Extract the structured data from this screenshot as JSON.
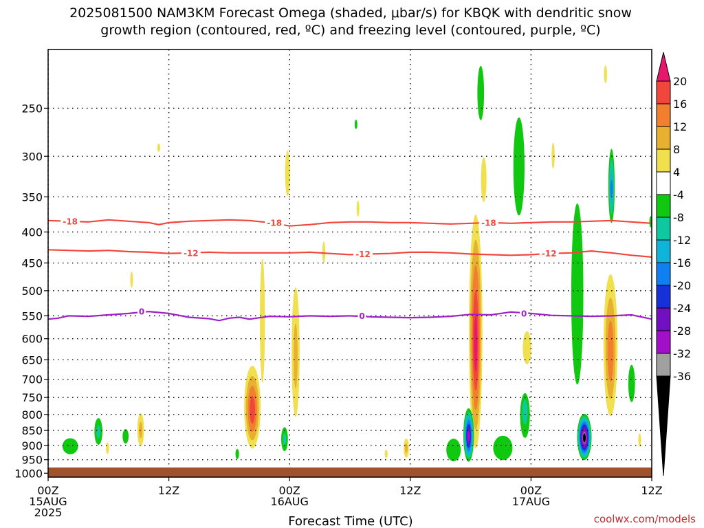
{
  "chart_data": {
    "type": "heatmap",
    "title_line1": "2025081500 NAM3KM Forecast Omega (shaded, μbar/s) for KBQK with dendritic snow",
    "title_line2": "growth region (contoured, red, ºC) and freezing level (contoured, purple, ºC)",
    "xlabel": "Forecast Time (UTC)",
    "credit": "coolwx.com/models",
    "x_range_hours": [
      0,
      60
    ],
    "y_axis": "pressure (hPa), log scale, inverted",
    "y_ticks": [
      250,
      300,
      350,
      400,
      450,
      500,
      550,
      600,
      650,
      700,
      750,
      800,
      850,
      900,
      950,
      1000
    ],
    "y_range": [
      200,
      1015
    ],
    "x_ticks": [
      {
        "hour": 0,
        "lines": [
          "00Z",
          "15AUG",
          "2025"
        ]
      },
      {
        "hour": 12,
        "lines": [
          "12Z"
        ]
      },
      {
        "hour": 24,
        "lines": [
          "00Z",
          "16AUG"
        ]
      },
      {
        "hour": 36,
        "lines": [
          "12Z"
        ]
      },
      {
        "hour": 48,
        "lines": [
          "00Z",
          "17AUG"
        ]
      },
      {
        "hour": 60,
        "lines": [
          "12Z"
        ]
      }
    ],
    "grid": "dotted",
    "colorbar": {
      "position": "right",
      "labels": [
        "20",
        "16",
        "12",
        "8",
        "4",
        "-4",
        "-8",
        "-12",
        "-16",
        "-20",
        "-24",
        "-28",
        "-32",
        "-36"
      ],
      "colors": [
        "#e8176c",
        "#f0463c",
        "#f08030",
        "#e8b030",
        "#f0e050",
        "#ffffff",
        "#10c810",
        "#10c8a0",
        "#10b4d8",
        "#1080f0",
        "#1830d8",
        "#7010c0",
        "#a010c8",
        "#a0a0a0",
        "#000000"
      ]
    },
    "contours": [
      {
        "name": "-18",
        "color": "#f0463c",
        "label": "-18",
        "points": [
          [
            0,
            383
          ],
          [
            2,
            384
          ],
          [
            4,
            385
          ],
          [
            6,
            382
          ],
          [
            8,
            384
          ],
          [
            10,
            386
          ],
          [
            11,
            389
          ],
          [
            12,
            386
          ],
          [
            14,
            384
          ],
          [
            16,
            383
          ],
          [
            18,
            382
          ],
          [
            20,
            383
          ],
          [
            22,
            386
          ],
          [
            24,
            391
          ],
          [
            26,
            389
          ],
          [
            28,
            386
          ],
          [
            30,
            385
          ],
          [
            32,
            385
          ],
          [
            34,
            386
          ],
          [
            36,
            386
          ],
          [
            38,
            387
          ],
          [
            40,
            388
          ],
          [
            42,
            387
          ],
          [
            44,
            386
          ],
          [
            46,
            387
          ],
          [
            48,
            386
          ],
          [
            50,
            385
          ],
          [
            52,
            385
          ],
          [
            54,
            384
          ],
          [
            56,
            383
          ],
          [
            58,
            385
          ],
          [
            60,
            387
          ]
        ]
      },
      {
        "name": "-12",
        "color": "#f0463c",
        "label": "-12",
        "points": [
          [
            0,
            428
          ],
          [
            2,
            429
          ],
          [
            4,
            430
          ],
          [
            6,
            429
          ],
          [
            8,
            431
          ],
          [
            10,
            432
          ],
          [
            12,
            434
          ],
          [
            14,
            433
          ],
          [
            16,
            432
          ],
          [
            18,
            433
          ],
          [
            20,
            433
          ],
          [
            22,
            433
          ],
          [
            24,
            433
          ],
          [
            26,
            432
          ],
          [
            28,
            434
          ],
          [
            30,
            436
          ],
          [
            32,
            435
          ],
          [
            34,
            434
          ],
          [
            36,
            432
          ],
          [
            38,
            432
          ],
          [
            40,
            433
          ],
          [
            42,
            435
          ],
          [
            44,
            436
          ],
          [
            46,
            437
          ],
          [
            48,
            436
          ],
          [
            50,
            434
          ],
          [
            52,
            433
          ],
          [
            54,
            430
          ],
          [
            56,
            433
          ],
          [
            58,
            437
          ],
          [
            60,
            440
          ]
        ]
      },
      {
        "name": "0",
        "color": "#a020c8",
        "label": "0",
        "points": [
          [
            0,
            557
          ],
          [
            1,
            555
          ],
          [
            2,
            550
          ],
          [
            4,
            551
          ],
          [
            6,
            548
          ],
          [
            8,
            545
          ],
          [
            10,
            541
          ],
          [
            12,
            545
          ],
          [
            14,
            553
          ],
          [
            16,
            556
          ],
          [
            17,
            560
          ],
          [
            18,
            555
          ],
          [
            19,
            553
          ],
          [
            20,
            557
          ],
          [
            22,
            551
          ],
          [
            24,
            552
          ],
          [
            26,
            550
          ],
          [
            28,
            551
          ],
          [
            30,
            550
          ],
          [
            32,
            552
          ],
          [
            34,
            553
          ],
          [
            36,
            554
          ],
          [
            38,
            553
          ],
          [
            40,
            551
          ],
          [
            42,
            547
          ],
          [
            44,
            548
          ],
          [
            46,
            542
          ],
          [
            48,
            545
          ],
          [
            50,
            549
          ],
          [
            52,
            550
          ],
          [
            54,
            551
          ],
          [
            56,
            550
          ],
          [
            58,
            548
          ],
          [
            60,
            557
          ]
        ]
      }
    ],
    "contour_labels": [
      {
        "text": "-18",
        "hour": 2.2,
        "p": 384,
        "color": "#f0463c"
      },
      {
        "text": "-18",
        "hour": 22.5,
        "p": 386,
        "color": "#f0463c"
      },
      {
        "text": "-18",
        "hour": 43.8,
        "p": 386,
        "color": "#f0463c"
      },
      {
        "text": "-12",
        "hour": 14.2,
        "p": 433,
        "color": "#f0463c"
      },
      {
        "text": "-12",
        "hour": 31.3,
        "p": 435,
        "color": "#f0463c"
      },
      {
        "text": "-12",
        "hour": 49.8,
        "p": 434,
        "color": "#f0463c"
      },
      {
        "text": "0",
        "hour": 9.3,
        "p": 541,
        "color": "#a020c8"
      },
      {
        "text": "0",
        "hour": 31.2,
        "p": 550,
        "color": "#a020c8"
      },
      {
        "text": "0",
        "hour": 47.3,
        "p": 545,
        "color": "#a020c8"
      }
    ],
    "omega_features": [
      {
        "hour": 2.2,
        "p": 895,
        "hw": 1.4,
        "p_lo": 860,
        "p_hi": 960,
        "value": -6
      },
      {
        "hour": 5.0,
        "p": 855,
        "hw": 0.6,
        "p_lo": 790,
        "p_hi": 920,
        "value": -9
      },
      {
        "hour": 7.7,
        "p": 870,
        "hw": 0.5,
        "p_lo": 830,
        "p_hi": 910,
        "value": -7
      },
      {
        "hour": 9.2,
        "p": 850,
        "hw": 0.5,
        "p_lo": 770,
        "p_hi": 930,
        "value": 9
      },
      {
        "hour": 5.9,
        "p": 910,
        "hw": 0.3,
        "p_lo": 870,
        "p_hi": 950,
        "value": 5
      },
      {
        "hour": 11.0,
        "p": 290,
        "hw": 0.3,
        "p_lo": 282,
        "p_hi": 300,
        "value": 5
      },
      {
        "hour": 8.3,
        "p": 480,
        "hw": 0.2,
        "p_lo": 450,
        "p_hi": 510,
        "value": 5
      },
      {
        "hour": 20.3,
        "p": 790,
        "hw": 1.0,
        "p_lo": 640,
        "p_hi": 940,
        "value": 19
      },
      {
        "hour": 21.3,
        "p": 560,
        "hw": 0.5,
        "p_lo": 350,
        "p_hi": 900,
        "value": 5
      },
      {
        "hour": 23.5,
        "p": 880,
        "hw": 0.5,
        "p_lo": 820,
        "p_hi": 940,
        "value": -9
      },
      {
        "hour": 24.6,
        "p": 650,
        "hw": 0.6,
        "p_lo": 430,
        "p_hi": 900,
        "value": 9
      },
      {
        "hour": 23.8,
        "p": 320,
        "hw": 0.5,
        "p_lo": 270,
        "p_hi": 380,
        "value": 5
      },
      {
        "hour": 18.8,
        "p": 930,
        "hw": 0.3,
        "p_lo": 900,
        "p_hi": 960,
        "value": -7
      },
      {
        "hour": 27.4,
        "p": 430,
        "hw": 0.3,
        "p_lo": 400,
        "p_hi": 470,
        "value": 5
      },
      {
        "hour": 30.8,
        "p": 365,
        "hw": 0.2,
        "p_lo": 345,
        "p_hi": 390,
        "value": 5
      },
      {
        "hour": 30.6,
        "p": 265,
        "hw": 0.15,
        "p_lo": 258,
        "p_hi": 275,
        "value": -6
      },
      {
        "hour": 35.6,
        "p": 910,
        "hw": 0.4,
        "p_lo": 860,
        "p_hi": 960,
        "value": 9
      },
      {
        "hour": 33.6,
        "p": 930,
        "hw": 0.3,
        "p_lo": 900,
        "p_hi": 960,
        "value": 5
      },
      {
        "hour": 40.3,
        "p": 920,
        "hw": 1.2,
        "p_lo": 850,
        "p_hi": 980,
        "value": -7
      },
      {
        "hour": 42.5,
        "p": 620,
        "hw": 0.8,
        "p_lo": 340,
        "p_hi": 980,
        "value": 22
      },
      {
        "hour": 41.8,
        "p": 870,
        "hw": 0.6,
        "p_lo": 770,
        "p_hi": 970,
        "value": -30
      },
      {
        "hour": 43.0,
        "p": 230,
        "hw": 0.6,
        "p_lo": 200,
        "p_hi": 290,
        "value": -6
      },
      {
        "hour": 43.3,
        "p": 330,
        "hw": 0.5,
        "p_lo": 280,
        "p_hi": 380,
        "value": 6
      },
      {
        "hour": 45.2,
        "p": 910,
        "hw": 1.6,
        "p_lo": 840,
        "p_hi": 980,
        "value": -7
      },
      {
        "hour": 47.4,
        "p": 780,
        "hw": 0.7,
        "p_lo": 720,
        "p_hi": 920,
        "value": -10
      },
      {
        "hour": 46.8,
        "p": 300,
        "hw": 1.0,
        "p_lo": 230,
        "p_hi": 450,
        "value": -6
      },
      {
        "hour": 47.6,
        "p": 620,
        "hw": 0.7,
        "p_lo": 560,
        "p_hi": 690,
        "value": 7
      },
      {
        "hour": 50.2,
        "p": 300,
        "hw": 0.3,
        "p_lo": 270,
        "p_hi": 330,
        "value": 5
      },
      {
        "hour": 52.6,
        "p": 550,
        "hw": 1.0,
        "p_lo": 270,
        "p_hi": 850,
        "value": -7
      },
      {
        "hour": 53.3,
        "p": 875,
        "hw": 0.8,
        "p_lo": 790,
        "p_hi": 960,
        "value": -38
      },
      {
        "hour": 55.9,
        "p": 640,
        "hw": 0.9,
        "p_lo": 430,
        "p_hi": 860,
        "value": 15
      },
      {
        "hour": 56.0,
        "p": 340,
        "hw": 0.4,
        "p_lo": 280,
        "p_hi": 400,
        "value": -16
      },
      {
        "hour": 55.4,
        "p": 220,
        "hw": 0.3,
        "p_lo": 205,
        "p_hi": 235,
        "value": 5
      },
      {
        "hour": 58.0,
        "p": 720,
        "hw": 0.6,
        "p_lo": 620,
        "p_hi": 800,
        "value": -6
      },
      {
        "hour": 58.8,
        "p": 880,
        "hw": 0.2,
        "p_lo": 840,
        "p_hi": 930,
        "value": 5
      },
      {
        "hour": 59.9,
        "p": 385,
        "hw": 0.2,
        "p_lo": 370,
        "p_hi": 400,
        "value": -6
      }
    ]
  }
}
